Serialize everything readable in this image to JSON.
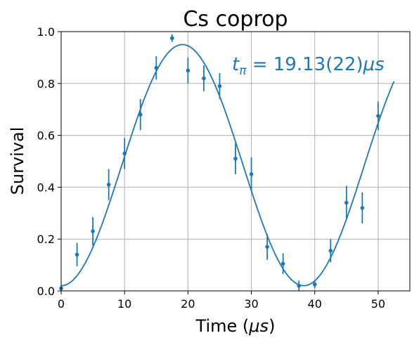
{
  "chart_data": {
    "type": "scatter",
    "title": "Cs coprop",
    "xlabel_text": "Time (",
    "xlabel_unit": "μs",
    "xlabel_close": ")",
    "ylabel": "Survival",
    "xlim": [
      0,
      55
    ],
    "ylim": [
      0,
      1.0
    ],
    "x_ticks": [
      0,
      10,
      20,
      30,
      40,
      50
    ],
    "y_ticks": [
      0.0,
      0.2,
      0.4,
      0.6,
      0.8,
      1.0
    ],
    "x_tick_labels": [
      "0",
      "10",
      "20",
      "30",
      "40",
      "50"
    ],
    "y_tick_labels": [
      "0.0",
      "0.2",
      "0.4",
      "0.6",
      "0.8",
      "1.0"
    ],
    "grid": true,
    "color": "#1f77b4",
    "annotation": {
      "t_symbol": "t",
      "pi_symbol": "π",
      "equals_value": " = 19.13(22)",
      "unit": "μs"
    },
    "series": [
      {
        "kind": "errorbar",
        "x": [
          0,
          2.5,
          5,
          7.5,
          10,
          12.5,
          15,
          17.5,
          20,
          22.5,
          25,
          27.5,
          30,
          32.5,
          35,
          37.5,
          40,
          42.5,
          45,
          47.5,
          50
        ],
        "y": [
          0.01,
          0.14,
          0.23,
          0.41,
          0.53,
          0.68,
          0.86,
          0.975,
          0.85,
          0.82,
          0.79,
          0.51,
          0.45,
          0.17,
          0.105,
          0.02,
          0.025,
          0.155,
          0.34,
          0.32,
          0.675
        ],
        "err": [
          0.0,
          0.045,
          0.055,
          0.06,
          0.06,
          0.06,
          0.045,
          0.015,
          0.05,
          0.05,
          0.05,
          0.06,
          0.065,
          0.05,
          0.04,
          0.02,
          0.015,
          0.045,
          0.065,
          0.06,
          0.055
        ]
      },
      {
        "kind": "fit",
        "x_start": 0,
        "x_end": 52.5,
        "offset": 0.485,
        "amplitude": 0.465,
        "period": 38.26,
        "phase_x": 19.13
      }
    ]
  }
}
